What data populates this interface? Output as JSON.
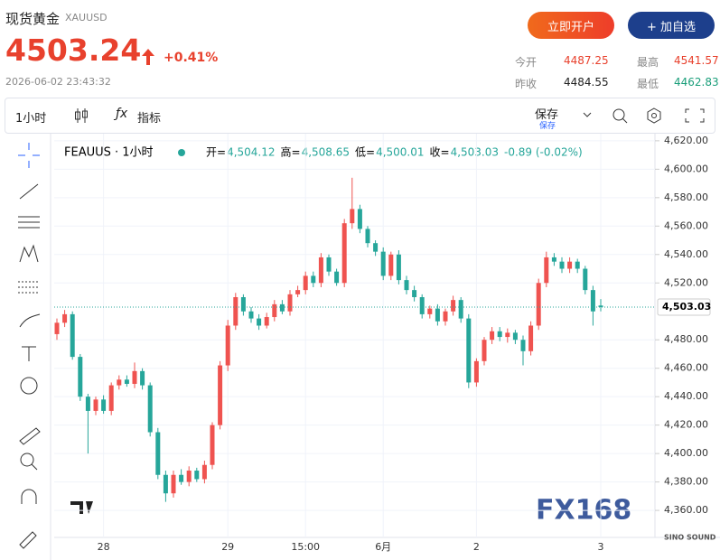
{
  "header": {
    "title": "现货黄金",
    "symbol": "XAUUSD",
    "price": "4503.24",
    "change": "+0.41%",
    "timestamp": "2026-06-02 23:43:32",
    "open_account": "立即开户",
    "add_watch": "+ 加自选",
    "stats": [
      {
        "label": "今开",
        "value": "4487.25"
      },
      {
        "label": "最高",
        "value": "4541.57"
      },
      {
        "label": "昨收",
        "value": "4484.55"
      },
      {
        "label": "最低",
        "value": "4462.83"
      }
    ]
  },
  "toolbar": {
    "interval": "1小时",
    "indicators": "指标",
    "save": "保存",
    "save_sub": "保存"
  },
  "chart_data": {
    "type": "candlestick",
    "title": "FEAUUS · 1小时",
    "legend": [
      {
        "label": "开=",
        "value": "4,504.12"
      },
      {
        "label": "高=",
        "value": "4,508.65"
      },
      {
        "label": "低=",
        "value": "4,500.01"
      },
      {
        "label": "收=",
        "value": "4,503.03"
      },
      {
        "label": "",
        "value": "-0.89 (-0.02%)"
      }
    ],
    "categories": [
      null,
      null,
      null,
      null,
      null,
      null,
      "28",
      null,
      null,
      null,
      null,
      null,
      null,
      null,
      null,
      null,
      null,
      null,
      null,
      null,
      null,
      null,
      "29",
      null,
      null,
      null,
      null,
      null,
      null,
      null,
      null,
      null,
      "15:00",
      null,
      null,
      null,
      null,
      null,
      null,
      null,
      null,
      null,
      "6月",
      null,
      null,
      null,
      null,
      null,
      null,
      null,
      null,
      null,
      null,
      null,
      "2",
      null,
      null,
      null,
      null,
      null,
      null,
      null,
      null,
      null,
      null,
      null,
      null,
      null,
      null,
      null,
      "3"
    ],
    "open": [
      4484,
      4492,
      4498,
      4468,
      4440,
      4430,
      4438,
      4430,
      4448,
      4452,
      4449,
      4458,
      4448,
      4415,
      4385,
      4372,
      4385,
      4380,
      4388,
      4382,
      4392,
      4420,
      4462,
      4490,
      4510,
      4500,
      4495,
      4490,
      4496,
      4505,
      4500,
      4512,
      4515,
      4525,
      4520,
      4538,
      4528,
      4520,
      4562,
      4572,
      4558,
      4548,
      4542,
      4525,
      4540,
      4522,
      4515,
      4510,
      4498,
      4502,
      4493,
      4500,
      4508,
      4495,
      4450,
      4465,
      4480,
      4486,
      4482,
      4485,
      4480,
      4472,
      4490,
      4520,
      4538,
      4535,
      4530,
      4535,
      4530,
      4515,
      4504.12
    ],
    "high": [
      4495,
      4501,
      4500,
      4470,
      4442,
      4440,
      4441,
      4450,
      4455,
      4455,
      4464,
      4460,
      4450,
      4418,
      4388,
      4388,
      4389,
      4391,
      4390,
      4395,
      4422,
      4465,
      4494,
      4513,
      4512,
      4503,
      4498,
      4499,
      4508,
      4508,
      4515,
      4518,
      4528,
      4528,
      4541,
      4540,
      4530,
      4565,
      4594,
      4575,
      4560,
      4550,
      4545,
      4542,
      4543,
      4525,
      4518,
      4512,
      4504,
      4505,
      4502,
      4511,
      4510,
      4498,
      4467,
      4482,
      4489,
      4489,
      4488,
      4487,
      4483,
      4493,
      4523,
      4542,
      4541,
      4538,
      4538,
      4537,
      4532,
      4518,
      4508.65
    ],
    "low": [
      4480,
      4489,
      4466,
      4437,
      4400,
      4427,
      4428,
      4427,
      4445,
      4447,
      4446,
      4445,
      4412,
      4382,
      4366,
      4369,
      4378,
      4377,
      4380,
      4379,
      4389,
      4417,
      4458,
      4487,
      4497,
      4492,
      4487,
      4488,
      4493,
      4498,
      4497,
      4510,
      4512,
      4517,
      4517,
      4525,
      4518,
      4517,
      4558,
      4555,
      4545,
      4539,
      4522,
      4522,
      4519,
      4512,
      4507,
      4495,
      4495,
      4490,
      4490,
      4497,
      4492,
      4446,
      4447,
      4462,
      4477,
      4479,
      4478,
      4477,
      4462,
      4469,
      4487,
      4517,
      4532,
      4527,
      4527,
      4527,
      4512,
      4490,
      4500.01
    ],
    "close": [
      4492,
      4498,
      4468,
      4440,
      4430,
      4438,
      4430,
      4448,
      4452,
      4449,
      4458,
      4448,
      4415,
      4385,
      4372,
      4385,
      4380,
      4388,
      4382,
      4392,
      4420,
      4462,
      4490,
      4510,
      4500,
      4495,
      4490,
      4496,
      4505,
      4500,
      4512,
      4515,
      4525,
      4520,
      4538,
      4528,
      4520,
      4562,
      4572,
      4558,
      4548,
      4542,
      4525,
      4540,
      4522,
      4515,
      4510,
      4498,
      4502,
      4493,
      4500,
      4508,
      4495,
      4450,
      4465,
      4480,
      4486,
      4482,
      4485,
      4480,
      4472,
      4490,
      4520,
      4538,
      4535,
      4530,
      4535,
      4530,
      4515,
      4500,
      4503.03
    ],
    "up_color": "#ef5350",
    "down_color": "#26a69a",
    "ylim": [
      4341,
      4625
    ],
    "yticks": [
      {
        "value": 4360,
        "label": "4,360.00"
      },
      {
        "value": 4380,
        "label": "4,380.00"
      },
      {
        "value": 4400,
        "label": "4,400.00"
      },
      {
        "value": 4420,
        "label": "4,420.00"
      },
      {
        "value": 4440,
        "label": "4,440.00"
      },
      {
        "value": 4460,
        "label": "4,460.00"
      },
      {
        "value": 4480,
        "label": "4,480.00"
      },
      {
        "value": 4520,
        "label": "4,520.00"
      },
      {
        "value": 4540,
        "label": "4,540.00"
      },
      {
        "value": 4560,
        "label": "4,560.00"
      },
      {
        "value": 4580,
        "label": "4,580.00"
      },
      {
        "value": 4600,
        "label": "4,600.00"
      },
      {
        "value": 4620,
        "label": "4,620.00"
      }
    ],
    "last_price": {
      "value": 4503.03,
      "label": "4,503.03"
    },
    "grid": true,
    "watermark": "FX168",
    "brand": "SINO SOUND"
  }
}
